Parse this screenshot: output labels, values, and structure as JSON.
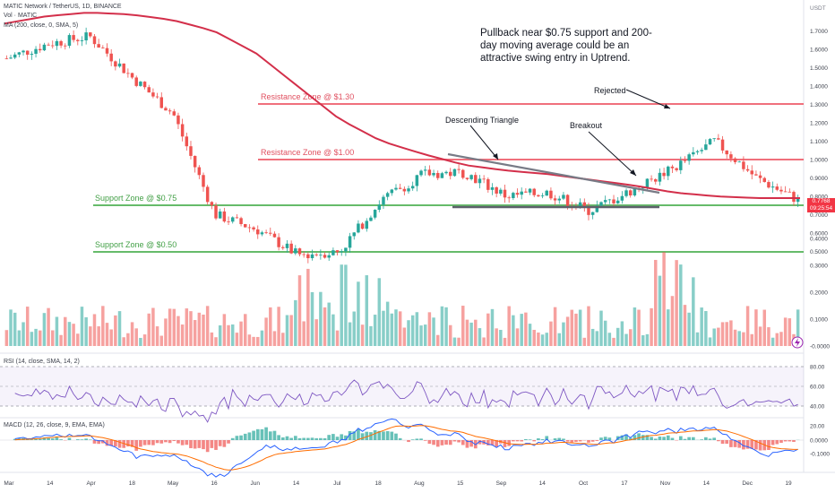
{
  "header": {
    "symbol_line": "MATIC Network / TetherUS, 1D, BINANCE",
    "vol_label": "Vol · MATIC",
    "ma_label": "MA (200, close, 0, SMA, 5)",
    "rsi_label": "RSI (14, close, SMA, 14, 2)",
    "macd_label": "MACD (12, 26, close, 9, EMA, EMA)",
    "currency": "USDT"
  },
  "price_badge": {
    "price": "0.7768",
    "timer": "09:25:54"
  },
  "chart_data": {
    "type": "candlestick",
    "x_axis": {
      "tick_labels": [
        "Mar",
        "14",
        "Apr",
        "18",
        "May",
        "16",
        "Jun",
        "14",
        "Jul",
        "18",
        "Aug",
        "15",
        "Sep",
        "14",
        "Oct",
        "17",
        "Nov",
        "14",
        "Dec",
        "19"
      ]
    },
    "price_axis": {
      "tick_labels": [
        "1.7000",
        "1.6000",
        "1.5000",
        "1.4000",
        "1.3000",
        "1.2000",
        "1.1000",
        "1.0000",
        "0.9000",
        "0.8000",
        "0.7000",
        "0.6000",
        "0.5000"
      ],
      "range": [
        0.35,
        1.85
      ]
    },
    "price_series_approx": {
      "x_dates": [
        "Mar 1",
        "Mar 14",
        "Apr 1",
        "Apr 18",
        "May 1",
        "May 16",
        "Jun 1",
        "Jun 14",
        "Jul 1",
        "Jul 18",
        "Aug 1",
        "Aug 15",
        "Sep 1",
        "Sep 14",
        "Oct 1",
        "Oct 17",
        "Nov 1",
        "Nov 14",
        "Dec 1",
        "Dec 19"
      ],
      "close": [
        1.55,
        1.63,
        1.67,
        1.45,
        1.25,
        0.7,
        0.62,
        0.48,
        0.5,
        0.78,
        0.92,
        0.93,
        0.8,
        0.82,
        0.72,
        0.83,
        0.95,
        1.1,
        0.9,
        0.78
      ]
    },
    "ma_series_approx": [
      1.74,
      1.78,
      1.8,
      1.79,
      1.76,
      1.7,
      1.58,
      1.4,
      1.22,
      1.1,
      1.03,
      0.97,
      0.94,
      0.92,
      0.89,
      0.86,
      0.82,
      0.8,
      0.79,
      0.79
    ],
    "zones": [
      {
        "label": "Resistance Zone @ $1.30",
        "price": 1.3,
        "color": "#f0707c"
      },
      {
        "label": "Resistance Zone @ $1.00",
        "price": 1.0,
        "color": "#f0707c"
      },
      {
        "label": "Support Zone @ $0.75",
        "price": 0.75,
        "color": "#66bb6a"
      },
      {
        "label": "Support Zone @ $0.50",
        "price": 0.5,
        "color": "#66bb6a"
      }
    ],
    "annotations": {
      "main_note": [
        "Pullback near $0.75 support and 200-",
        "day moving average could be an",
        "attractive swing entry in Uptrend."
      ],
      "descending_triangle": "Descending Triangle",
      "breakout": "Breakout",
      "rejected": "Rejected"
    },
    "volume_axis": {
      "tick_labels": [
        "0.4000",
        "0.3000",
        "0.2000",
        "0.1000",
        "-0.0000"
      ]
    },
    "rsi_axis": {
      "tick_labels": [
        "80.00",
        "60.00",
        "40.00",
        "20.00"
      ]
    },
    "macd_axis": {
      "tick_labels": [
        "0.0000",
        "-0.1000"
      ]
    },
    "colors": {
      "up": "#26a69a",
      "down": "#ef5350",
      "ma": "#d32f4a",
      "rsi": "#7e57c2",
      "macd": "#2962ff",
      "signal": "#ff6d00"
    }
  }
}
